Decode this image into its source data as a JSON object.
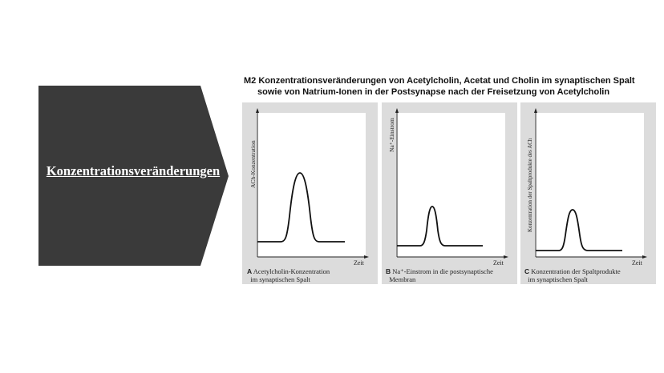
{
  "arrow": {
    "label": "Konzentrationsveränderungen",
    "color": "#3a3a3a"
  },
  "figure": {
    "title_line1": "M2 Konzentrationsveränderungen von Acetylcholin, Acetat und Cholin im synaptischen Spalt",
    "title_line2": "sowie von Natrium-Ionen in der Postsynapse nach der Freisetzung von Acetylcholin",
    "panels": [
      {
        "letter": "A",
        "ylabel": "ACh-Konzentration",
        "xlabel": "Zeit",
        "caption_line1": "Acetylcholin-Konzentration",
        "caption_line2": "im synaptischen Spalt"
      },
      {
        "letter": "B",
        "ylabel": "Na⁺-Einstrom",
        "xlabel": "Zeit",
        "caption_line1": "Na⁺-Einstrom in die postsynaptische",
        "caption_line2": "Membran"
      },
      {
        "letter": "C",
        "ylabel": "Konzentration der Spaltprodukte des ACh",
        "xlabel": "Zeit",
        "caption_line1": "Konzentration der Spaltprodukte",
        "caption_line2": "im synaptischen Spalt"
      }
    ],
    "panel_bg": "#dcdcdc"
  }
}
